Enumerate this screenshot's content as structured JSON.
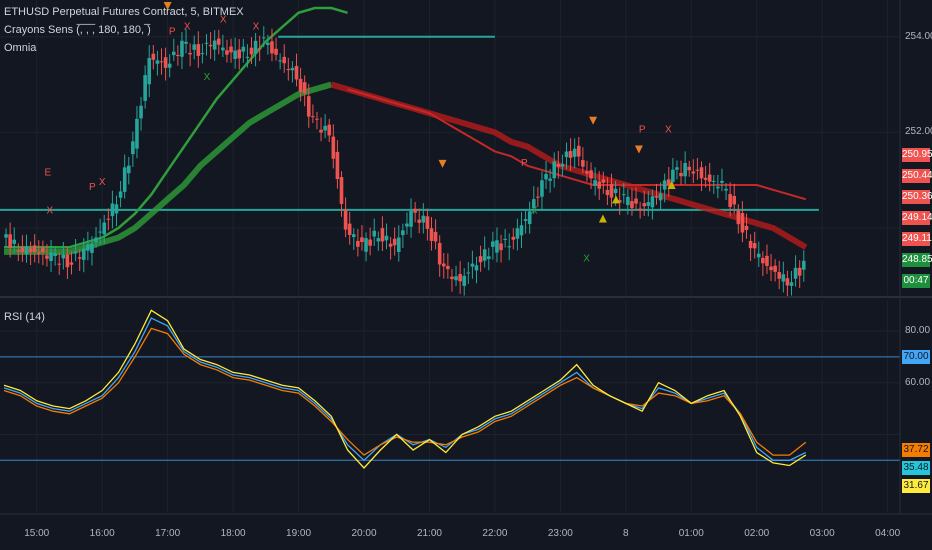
{
  "legend": {
    "symbol": "ETHUSD Perpetual Futures Contract, 5, BITMEX",
    "indicator1": "Crayons Sens (̅, ̅, ̅, 180, 180, ̅)",
    "indicator2": "Omnia",
    "rsi": "RSI (14)"
  },
  "colors": {
    "background": "#131722",
    "up": "#26a69a",
    "down": "#ef5350",
    "green_ma": "#2e9e3a",
    "red_ma": "#b71c1c",
    "level_line": "#26a69a",
    "rsi_blue": "#42a5f5",
    "rsi_orange": "#f57c00",
    "rsi_yellow": "#ffeb3b"
  },
  "chart_data": [
    {
      "type": "line",
      "title": "",
      "y_ticks": [
        "254.00",
        "252.00"
      ],
      "price_tags": [
        {
          "label": "250.95",
          "color": "#ef5350"
        },
        {
          "label": "250.44",
          "color": "#ef5350"
        },
        {
          "label": "250.36",
          "color": "#ef5350"
        },
        {
          "label": "249.14",
          "color": "#ef5350"
        },
        {
          "label": "249.11",
          "color": "#ef5350"
        },
        {
          "label": "248.85",
          "color": "#1e8f3c"
        },
        {
          "label": "00:47",
          "color": "#1e8f3c"
        }
      ],
      "ylim": [
        248.6,
        254.6
      ],
      "x_hours": [
        14.5,
        14.75,
        15,
        15.25,
        15.5,
        15.75,
        16,
        16.25,
        16.5,
        16.75,
        17,
        17.25,
        17.5,
        17.75,
        18,
        18.25,
        18.5,
        18.75,
        19,
        19.25,
        19.5,
        19.75,
        20,
        20.25,
        20.5,
        20.75,
        21,
        21.25,
        21.5,
        21.75,
        22,
        22.25,
        22.5,
        22.75,
        23,
        23.25,
        23.5,
        23.75,
        24,
        24.25,
        24.5,
        24.75,
        25,
        25.25,
        25.5,
        25.75,
        26,
        26.25,
        26.5,
        26.75
      ],
      "price": [
        249.8,
        249.6,
        249.5,
        249.4,
        249.3,
        249.5,
        249.9,
        250.6,
        251.7,
        253.6,
        253.4,
        253.8,
        253.7,
        253.9,
        253.6,
        253.7,
        253.9,
        253.5,
        253.2,
        252.2,
        252.0,
        250.0,
        249.6,
        249.9,
        249.6,
        250.3,
        250.1,
        249.1,
        248.9,
        249.3,
        249.6,
        249.7,
        250.2,
        250.9,
        251.4,
        251.6,
        251.0,
        250.8,
        250.6,
        250.4,
        250.7,
        251.1,
        251.3,
        251.0,
        250.9,
        250.2,
        249.5,
        249.1,
        248.9,
        249.2
      ],
      "series": [
        {
          "values": [
            249.6,
            249.6,
            249.6,
            249.6,
            249.6,
            249.7,
            249.8,
            250.0,
            250.3,
            250.7,
            251.2,
            251.7,
            252.2,
            252.7,
            253.1,
            253.5,
            253.9,
            254.2,
            254.5,
            254.6,
            254.6,
            254.5
          ]
        },
        {
          "values": [
            249.5,
            249.5,
            249.5,
            249.5,
            249.5,
            249.6,
            249.7,
            249.8,
            250.0,
            250.3,
            250.6,
            250.9,
            251.3,
            251.6,
            251.9,
            252.2,
            252.4,
            252.6,
            252.8,
            252.9,
            253.0,
            252.9,
            252.8,
            252.7,
            252.6,
            252.5,
            252.4,
            252.3,
            252.2,
            252.1,
            252.0,
            251.8,
            251.7,
            251.5,
            251.3,
            251.2,
            251.1,
            251.0,
            250.9,
            250.8,
            250.7,
            250.6,
            250.5,
            250.4,
            250.3,
            250.2,
            250.1,
            250.0,
            249.8,
            249.6
          ]
        },
        {
          "values": [
            null,
            null,
            null,
            null,
            null,
            null,
            null,
            null,
            null,
            null,
            null,
            null,
            null,
            null,
            null,
            null,
            null,
            null,
            null,
            null,
            null,
            252.9,
            252.8,
            252.7,
            252.6,
            252.5,
            252.4,
            252.2,
            252.0,
            251.8,
            251.6,
            251.5,
            251.3,
            251.2,
            251.1,
            251.0,
            250.9,
            250.9,
            250.9,
            250.9,
            250.9,
            250.9,
            250.9,
            250.9,
            250.9,
            250.9,
            250.9,
            250.8,
            250.7,
            250.6
          ]
        }
      ],
      "levels": [
        {
          "value": 250.38,
          "from": 14.5,
          "to": 26.95
        },
        {
          "value": 254.0,
          "from": 18.75,
          "to": 22.0
        }
      ],
      "markers": [
        {
          "label": "E",
          "x": 15.17,
          "y": 251.1,
          "color": "#ef5350"
        },
        {
          "label": "X",
          "x": 15.2,
          "y": 250.3,
          "color": "#ef5350"
        },
        {
          "label": "P",
          "x": 15.85,
          "y": 250.8,
          "color": "#ef5350"
        },
        {
          "label": "X",
          "x": 16.0,
          "y": 250.9,
          "color": "#ef5350"
        },
        {
          "label": "P",
          "x": 17.07,
          "y": 254.05,
          "color": "#ef5350"
        },
        {
          "label": "X",
          "x": 17.3,
          "y": 254.15,
          "color": "#ef5350"
        },
        {
          "label": "X",
          "x": 17.6,
          "y": 253.1,
          "color": "#2e9e3a"
        },
        {
          "label": "X",
          "x": 17.85,
          "y": 254.3,
          "color": "#ef5350"
        },
        {
          "label": "X",
          "x": 18.35,
          "y": 254.15,
          "color": "#ef5350"
        },
        {
          "label": "P",
          "x": 18.82,
          "y": 254.8,
          "color": "#ef5350"
        },
        {
          "label": "P",
          "x": 22.45,
          "y": 251.3,
          "color": "#ef5350"
        },
        {
          "label": "X",
          "x": 22.6,
          "y": 250.3,
          "color": "#2e9e3a"
        },
        {
          "label": "X",
          "x": 23.4,
          "y": 249.3,
          "color": "#2e9e3a"
        },
        {
          "label": "P",
          "x": 24.25,
          "y": 252.0,
          "color": "#ef5350"
        },
        {
          "label": "X",
          "x": 24.65,
          "y": 252.0,
          "color": "#ef5350"
        }
      ]
    },
    {
      "type": "line",
      "title": "RSI (14)",
      "ylim": [
        10,
        92
      ],
      "y_ticks": [
        "80.00",
        "60.00"
      ],
      "bands": [
        70,
        30
      ],
      "value_tags": [
        {
          "label": "70.00",
          "color": "#42a5f5",
          "text": "#131722"
        },
        {
          "label": "37.72",
          "color": "#f57c00",
          "text": "#131722"
        },
        {
          "label": "35.48",
          "color": "#26c6da",
          "text": "#131722"
        },
        {
          "label": "31.67",
          "color": "#ffeb3b",
          "text": "#131722"
        }
      ],
      "x_hours": [
        14.5,
        14.75,
        15,
        15.25,
        15.5,
        15.75,
        16,
        16.25,
        16.5,
        16.75,
        17,
        17.25,
        17.5,
        17.75,
        18,
        18.25,
        18.5,
        18.75,
        19,
        19.25,
        19.5,
        19.75,
        20,
        20.25,
        20.5,
        20.75,
        21,
        21.25,
        21.5,
        21.75,
        22,
        22.25,
        22.5,
        22.75,
        23,
        23.25,
        23.5,
        23.75,
        24,
        24.25,
        24.5,
        24.75,
        25,
        25.25,
        25.5,
        25.75,
        26,
        26.25,
        26.5,
        26.75
      ],
      "series": [
        {
          "values": [
            58,
            56,
            52,
            50,
            49,
            52,
            55,
            62,
            72,
            85,
            82,
            72,
            68,
            66,
            63,
            62,
            60,
            58,
            57,
            52,
            46,
            36,
            30,
            36,
            40,
            36,
            38,
            35,
            40,
            42,
            46,
            48,
            52,
            56,
            60,
            64,
            58,
            55,
            52,
            50,
            58,
            56,
            52,
            54,
            56,
            48,
            35,
            30,
            30,
            33
          ]
        },
        {
          "values": [
            57,
            55,
            51,
            49,
            48,
            51,
            54,
            60,
            70,
            81,
            79,
            71,
            67,
            65,
            62,
            61,
            59,
            57,
            56,
            51,
            45,
            38,
            32,
            36,
            39,
            37,
            37,
            36,
            39,
            41,
            45,
            47,
            51,
            55,
            59,
            62,
            58,
            55,
            52,
            51,
            56,
            55,
            52,
            53,
            55,
            48,
            37,
            32,
            32,
            37
          ]
        },
        {
          "values": [
            59,
            57,
            53,
            51,
            50,
            53,
            57,
            64,
            75,
            88,
            84,
            73,
            69,
            67,
            64,
            63,
            61,
            59,
            58,
            53,
            47,
            34,
            27,
            34,
            40,
            34,
            38,
            33,
            40,
            43,
            47,
            49,
            53,
            57,
            61,
            67,
            59,
            55,
            52,
            49,
            60,
            57,
            52,
            55,
            57,
            47,
            33,
            29,
            28,
            32
          ]
        }
      ]
    }
  ],
  "time_axis": {
    "labels": [
      {
        "label": "15:00",
        "h": 15
      },
      {
        "label": "16:00",
        "h": 16
      },
      {
        "label": "17:00",
        "h": 17
      },
      {
        "label": "18:00",
        "h": 18
      },
      {
        "label": "19:00",
        "h": 19
      },
      {
        "label": "20:00",
        "h": 20
      },
      {
        "label": "21:00",
        "h": 21
      },
      {
        "label": "22:00",
        "h": 22
      },
      {
        "label": "23:00",
        "h": 23
      },
      {
        "label": "8",
        "h": 24
      },
      {
        "label": "01:00",
        "h": 25
      },
      {
        "label": "02:00",
        "h": 26
      },
      {
        "label": "03:00",
        "h": 27
      },
      {
        "label": "04:00",
        "h": 28
      }
    ]
  }
}
